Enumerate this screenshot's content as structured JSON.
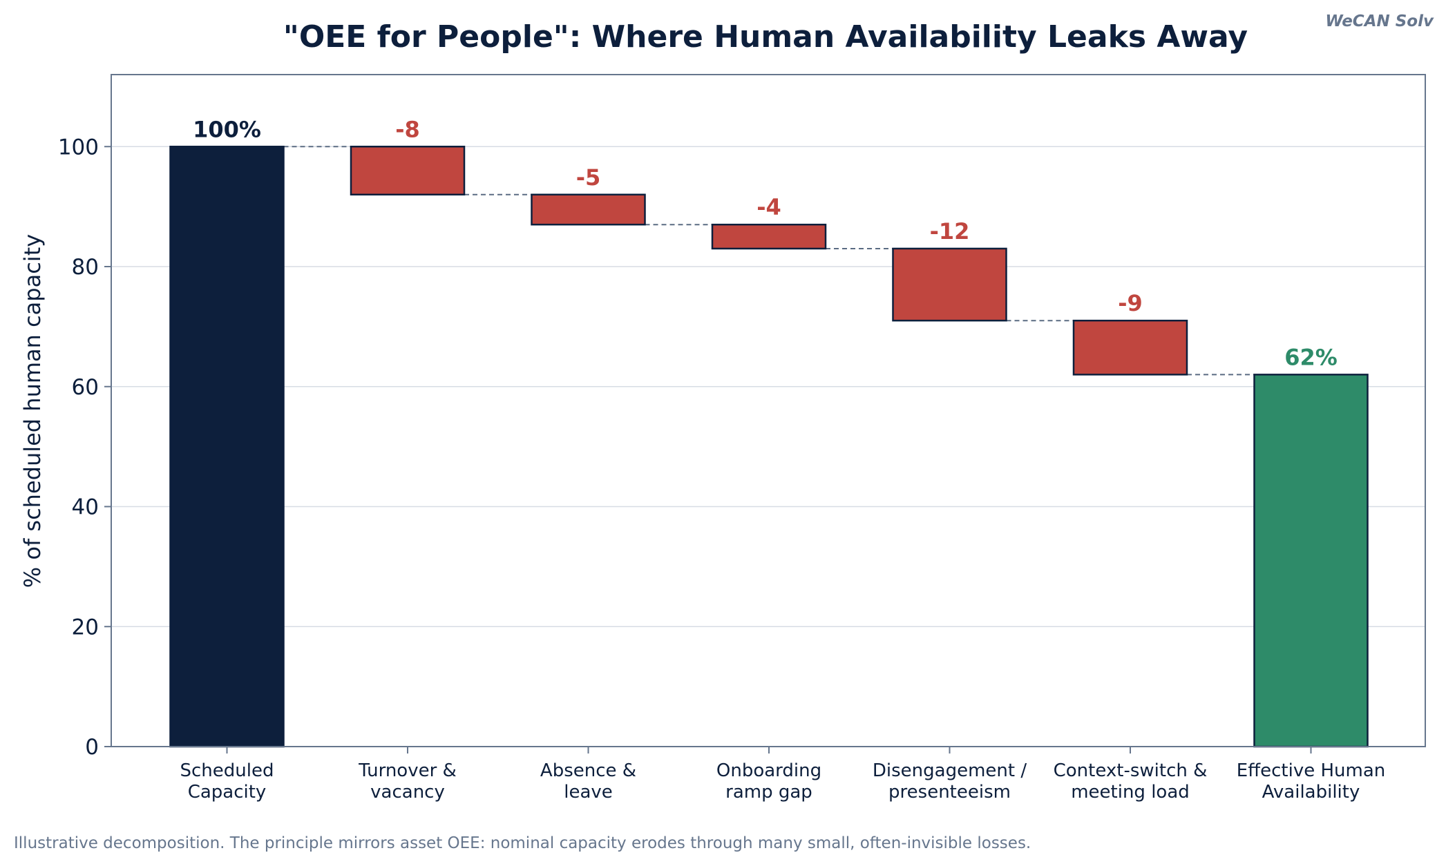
{
  "brand": "WeCAN Solv",
  "footnote": "Illustrative decomposition. The principle mirrors asset OEE: nominal capacity erodes through many small, often-invisible losses.",
  "colors": {
    "start": "#0d1f3c",
    "decrease": "#c0463f",
    "end": "#2e8b69",
    "connector": "#5a6b82",
    "grid": "#d7dce4",
    "axis": "#66768d"
  },
  "chart_data": {
    "type": "bar",
    "subtype": "waterfall",
    "title": "\"OEE for People\": Where Human Availability Leaks Away",
    "ylabel": "% of scheduled human capacity",
    "xlabel": "",
    "ylim": [
      0,
      112
    ],
    "yticks": [
      0,
      20,
      40,
      60,
      80,
      100
    ],
    "grid": true,
    "categories": [
      [
        "Scheduled",
        "Capacity"
      ],
      [
        "Turnover &",
        "vacancy"
      ],
      [
        "Absence &",
        "leave"
      ],
      [
        "Onboarding",
        "ramp gap"
      ],
      [
        "Disengagement /",
        "presenteeism"
      ],
      [
        "Context-switch &",
        "meeting load"
      ],
      [
        "Effective Human",
        "Availability"
      ]
    ],
    "values": [
      100,
      -8,
      -5,
      -4,
      -12,
      -9,
      62
    ],
    "kinds": [
      "total",
      "delta",
      "delta",
      "delta",
      "delta",
      "delta",
      "total"
    ],
    "data_labels": [
      "100%",
      "-8",
      "-5",
      "-4",
      "-12",
      "-9",
      "62%"
    ]
  }
}
